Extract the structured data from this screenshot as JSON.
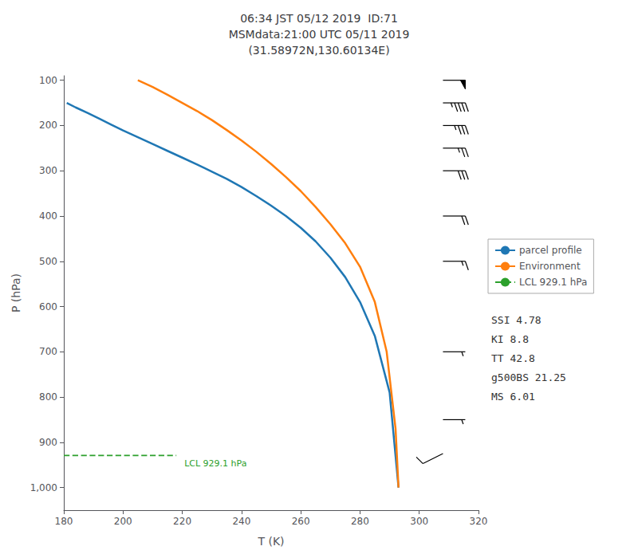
{
  "chart_data": {
    "type": "line",
    "title": "06:34 JST 05/12 2019  ID:71\nMSMdata:21:00 UTC 05/11 2019\n(31.58972N,130.60134E)",
    "xlabel": "T (K)",
    "ylabel": "P (hPa)",
    "xlim": [
      180,
      320
    ],
    "ylim": [
      1050,
      90
    ],
    "xticks": [
      180,
      200,
      220,
      240,
      260,
      280,
      300,
      320
    ],
    "yticks": [
      100,
      200,
      300,
      400,
      500,
      600,
      700,
      800,
      900,
      1000
    ],
    "grid": false,
    "legend": "right",
    "series": [
      {
        "name": "parcel profile",
        "color": "#1f77b4",
        "line_style": "solid",
        "x": [
          181,
          184,
          188,
          192,
          196,
          200,
          205,
          210,
          215,
          220,
          225,
          230,
          235,
          240,
          245,
          250,
          255,
          260,
          265,
          270,
          275,
          280,
          285,
          290,
          293
        ],
        "values": [
          150,
          160,
          172,
          185,
          198,
          211,
          226,
          241,
          256,
          271,
          286,
          302,
          318,
          336,
          356,
          377,
          400,
          426,
          456,
          492,
          535,
          590,
          665,
          790,
          1000
        ]
      },
      {
        "name": "Environment",
        "color": "#ff7f0e",
        "line_style": "solid",
        "x": [
          205,
          210,
          215,
          220,
          225,
          230,
          235,
          240,
          245,
          250,
          255,
          260,
          265,
          270,
          275,
          280,
          285,
          289,
          292,
          293
        ],
        "values": [
          100,
          115,
          132,
          150,
          168,
          188,
          210,
          233,
          258,
          285,
          314,
          345,
          380,
          418,
          460,
          512,
          590,
          700,
          870,
          1000
        ]
      },
      {
        "name": "LCL 929.1 hPa",
        "color": "#2ca02c",
        "line_style": "dashed",
        "x": [
          180,
          218
        ],
        "values": [
          929.1,
          929.1
        ],
        "annotation": "LCL 929.1 hPa"
      }
    ],
    "wind_barbs": {
      "color": "black",
      "x": 308,
      "pressure": [
        100,
        150,
        200,
        250,
        300,
        400,
        500,
        700,
        850,
        925
      ],
      "u": [
        -50,
        -45,
        -35,
        -25,
        -30,
        -20,
        -15,
        -5,
        -3,
        10
      ],
      "v": [
        0,
        0,
        0,
        0,
        0,
        0,
        0,
        0,
        0,
        5
      ]
    },
    "stats": [
      "SSI 4.78",
      "KI 8.8",
      "TT 42.8",
      "g500BS 21.25",
      "MS 6.01"
    ]
  }
}
